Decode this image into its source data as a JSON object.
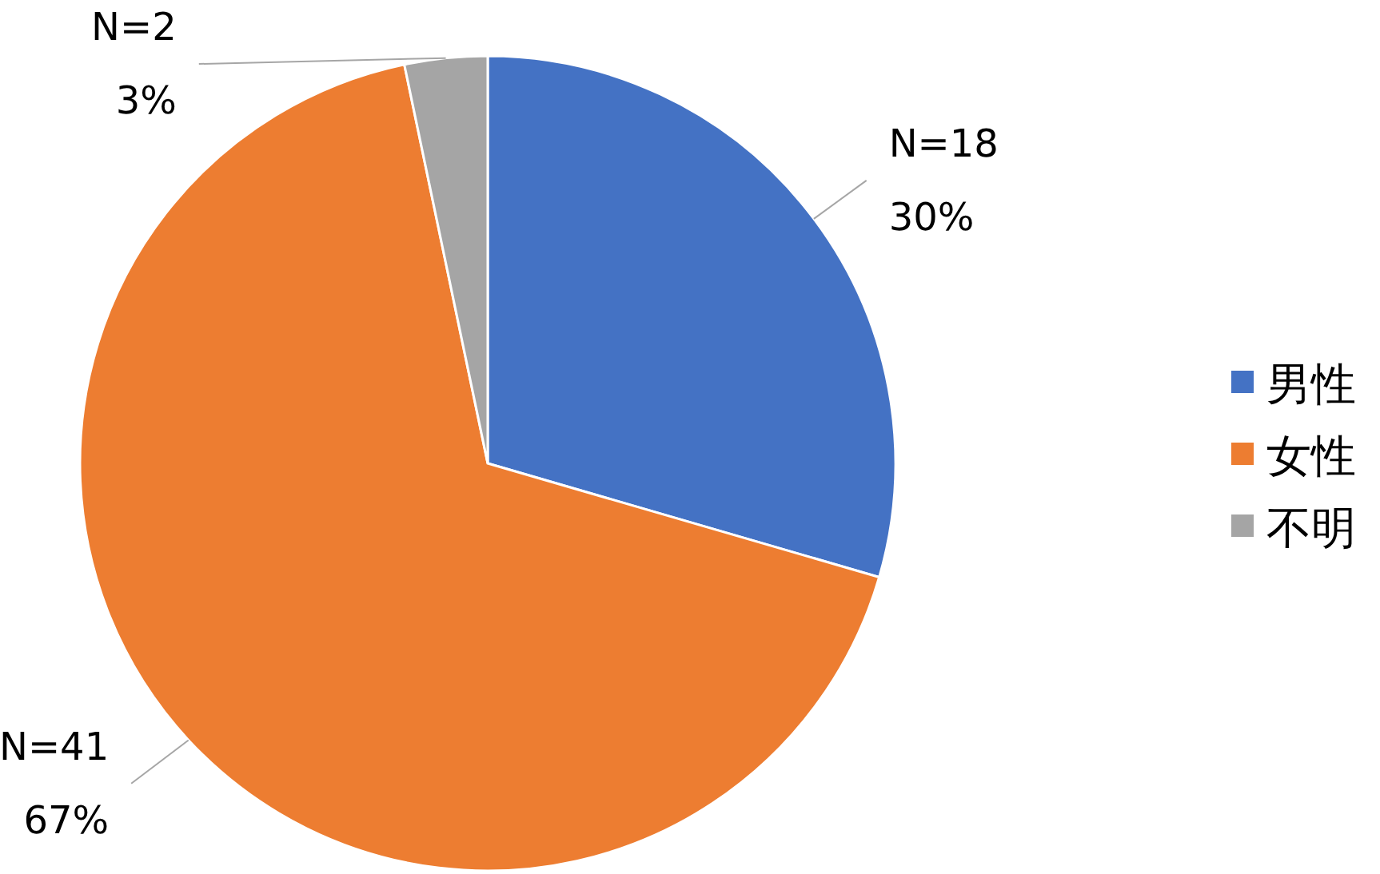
{
  "chart_data": {
    "type": "pie",
    "categories": [
      "男性",
      "女性",
      "不明"
    ],
    "values": [
      18,
      41,
      2
    ],
    "value_labels": [
      "N=18\n30%",
      "N=41\n67%",
      "N=2\n3%"
    ],
    "colors": [
      "#4472c4",
      "#ed7d31",
      "#a5a5a5"
    ],
    "legend": "right"
  }
}
